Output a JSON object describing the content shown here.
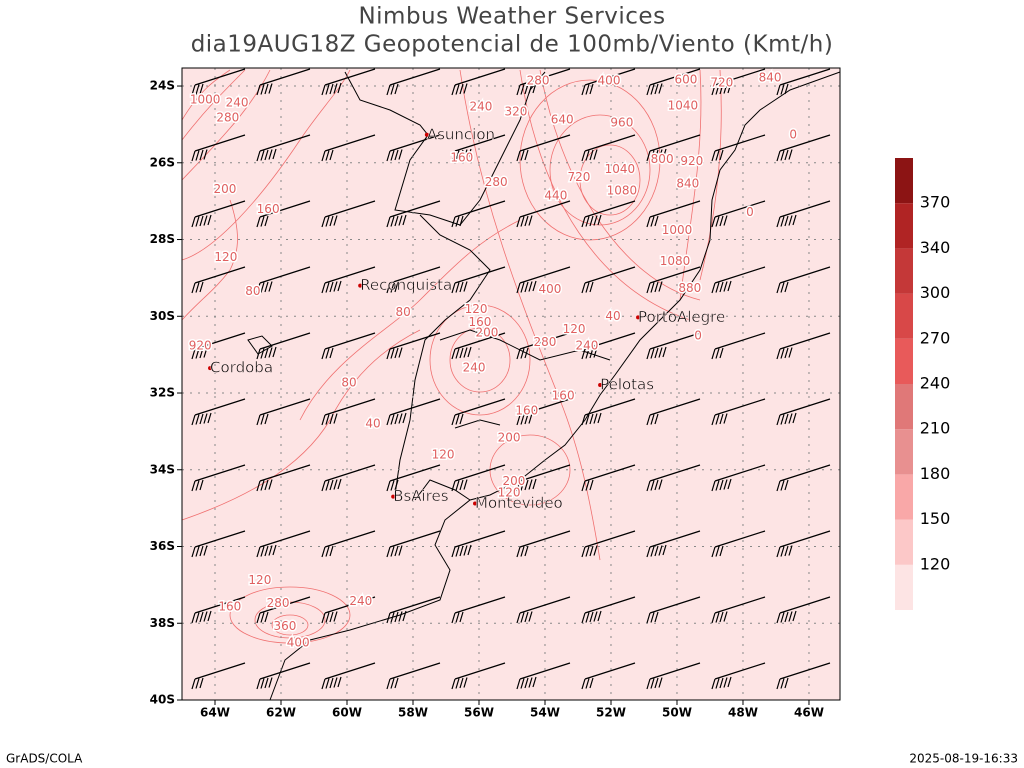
{
  "header": {
    "title": [
      "Nimbus Weather Services",
      "dia19AUG18Z Geopotencial de 100mb/Viento (Kmt/h)"
    ]
  },
  "map": {
    "lon_range": [
      -65,
      -45.06
    ],
    "lat_range": [
      -23.53,
      -40
    ],
    "lat_ticks": [
      {
        "value": -24,
        "label": "24S"
      },
      {
        "value": -26,
        "label": "26S"
      },
      {
        "value": -28,
        "label": "28S"
      },
      {
        "value": -30,
        "label": "30S"
      },
      {
        "value": -32,
        "label": "32S"
      },
      {
        "value": -34,
        "label": "34S"
      },
      {
        "value": -36,
        "label": "36S"
      },
      {
        "value": -38,
        "label": "38S"
      },
      {
        "value": -40,
        "label": "40S"
      }
    ],
    "lon_ticks": [
      {
        "value": -64,
        "label": "64W"
      },
      {
        "value": -62,
        "label": "62W"
      },
      {
        "value": -60,
        "label": "60W"
      },
      {
        "value": -58,
        "label": "58W"
      },
      {
        "value": -56,
        "label": "56W"
      },
      {
        "value": -54,
        "label": "54W"
      },
      {
        "value": -52,
        "label": "52W"
      },
      {
        "value": -50,
        "label": "50W"
      },
      {
        "value": -48,
        "label": "48W"
      },
      {
        "value": -46,
        "label": "46W"
      }
    ],
    "cities": [
      {
        "name": "Asuncion",
        "lon": -57.58,
        "lat": -25.27
      },
      {
        "name": "Reconquista",
        "lon": -59.6,
        "lat": -29.2
      },
      {
        "name": "Cordoba",
        "lon": -64.15,
        "lat": -31.35
      },
      {
        "name": "PortoAlegre",
        "lon": -51.18,
        "lat": -30.03
      },
      {
        "name": "Pelotas",
        "lon": -52.33,
        "lat": -31.79
      },
      {
        "name": "BsAires",
        "lon": -58.6,
        "lat": -34.7
      },
      {
        "name": "Montevideo",
        "lon": -56.12,
        "lat": -34.88
      }
    ],
    "contour_labels": [
      {
        "text": "1000",
        "lon": -64.3,
        "lat": -24.36
      },
      {
        "text": "240",
        "lon": -63.33,
        "lat": -24.44
      },
      {
        "text": "280",
        "lon": -63.61,
        "lat": -24.83
      },
      {
        "text": "200",
        "lon": -63.7,
        "lat": -26.7
      },
      {
        "text": "160",
        "lon": -62.39,
        "lat": -27.22
      },
      {
        "text": "120",
        "lon": -63.67,
        "lat": -28.47
      },
      {
        "text": "80",
        "lon": -62.85,
        "lat": -29.35
      },
      {
        "text": "920",
        "lon": -64.45,
        "lat": -30.78
      },
      {
        "text": "80",
        "lon": -58.3,
        "lat": -29.9
      },
      {
        "text": "80",
        "lon": -59.94,
        "lat": -31.74
      },
      {
        "text": "40",
        "lon": -59.21,
        "lat": -32.81
      },
      {
        "text": "120",
        "lon": -57.09,
        "lat": -33.61
      },
      {
        "text": "160",
        "lon": -54.55,
        "lat": -32.47
      },
      {
        "text": "200",
        "lon": -55.09,
        "lat": -33.17
      },
      {
        "text": "200",
        "lon": -54.94,
        "lat": -34.31
      },
      {
        "text": "120",
        "lon": -55.09,
        "lat": -34.6
      },
      {
        "text": "240",
        "lon": -59.58,
        "lat": -37.43
      },
      {
        "text": "120",
        "lon": -62.64,
        "lat": -36.88
      },
      {
        "text": "160",
        "lon": -63.55,
        "lat": -37.58
      },
      {
        "text": "280",
        "lon": -62.09,
        "lat": -37.48
      },
      {
        "text": "360",
        "lon": -61.88,
        "lat": -38.08
      },
      {
        "text": "400",
        "lon": -61.48,
        "lat": -38.52
      },
      {
        "text": "120",
        "lon": -56.09,
        "lat": -29.82
      },
      {
        "text": "160",
        "lon": -55.97,
        "lat": -30.16
      },
      {
        "text": "200",
        "lon": -55.76,
        "lat": -30.44
      },
      {
        "text": "240",
        "lon": -56.15,
        "lat": -31.35
      },
      {
        "text": "280",
        "lon": -54.0,
        "lat": -30.68
      },
      {
        "text": "120",
        "lon": -53.12,
        "lat": -30.34
      },
      {
        "text": "240",
        "lon": -52.73,
        "lat": -30.78
      },
      {
        "text": "40",
        "lon": -51.94,
        "lat": -30.0
      },
      {
        "text": "160",
        "lon": -53.45,
        "lat": -32.08
      },
      {
        "text": "400",
        "lon": -53.85,
        "lat": -29.3
      },
      {
        "text": "440",
        "lon": -53.67,
        "lat": -26.86
      },
      {
        "text": "720",
        "lon": -52.97,
        "lat": -26.39
      },
      {
        "text": "640",
        "lon": -53.48,
        "lat": -24.88
      },
      {
        "text": "960",
        "lon": -51.67,
        "lat": -24.96
      },
      {
        "text": "1040",
        "lon": -51.73,
        "lat": -26.18
      },
      {
        "text": "1080",
        "lon": -51.67,
        "lat": -26.73
      },
      {
        "text": "800",
        "lon": -50.45,
        "lat": -25.92
      },
      {
        "text": "920",
        "lon": -49.55,
        "lat": -25.97
      },
      {
        "text": "840",
        "lon": -49.67,
        "lat": -26.55
      },
      {
        "text": "1000",
        "lon": -50.0,
        "lat": -27.77
      },
      {
        "text": "1080",
        "lon": -50.06,
        "lat": -28.57
      },
      {
        "text": "880",
        "lon": -49.61,
        "lat": -29.27
      },
      {
        "text": "1040",
        "lon": -49.82,
        "lat": -24.52
      },
      {
        "text": "400",
        "lon": -52.06,
        "lat": -23.87
      },
      {
        "text": "600",
        "lon": -49.73,
        "lat": -23.84
      },
      {
        "text": "720",
        "lon": -48.64,
        "lat": -23.92
      },
      {
        "text": "840",
        "lon": -47.18,
        "lat": -23.79
      },
      {
        "text": "280",
        "lon": -54.21,
        "lat": -23.87
      },
      {
        "text": "320",
        "lon": -54.88,
        "lat": -24.68
      },
      {
        "text": "240",
        "lon": -55.94,
        "lat": -24.55
      },
      {
        "text": "160",
        "lon": -56.52,
        "lat": -25.87
      },
      {
        "text": "280",
        "lon": -55.48,
        "lat": -26.52
      },
      {
        "text": "0",
        "lon": -46.48,
        "lat": -25.27
      },
      {
        "text": "0",
        "lon": -47.79,
        "lat": -27.3
      },
      {
        "text": "0",
        "lon": -49.36,
        "lat": -30.52
      }
    ]
  },
  "colorbar": {
    "levels": [
      120,
      150,
      180,
      210,
      240,
      270,
      300,
      340,
      370
    ],
    "colors": [
      "#fde4e4",
      "#fcc8c8",
      "#f9a8a8",
      "#e89090",
      "#e07878",
      "#e85a5a",
      "#d84848",
      "#c43838",
      "#b02424",
      "#8c1414"
    ]
  },
  "footer": {
    "left": "GrADS/COLA",
    "right": "2025-08-19-16:33"
  }
}
